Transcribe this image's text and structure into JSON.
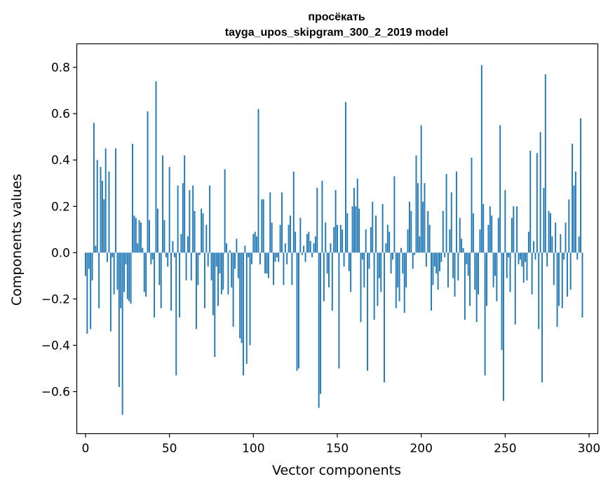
{
  "chart_data": {
    "type": "bar",
    "title": "просёкать",
    "subtitle": "tayga_upos_skipgram_300_2_2019 model",
    "xlabel": "Vector components",
    "ylabel": "Components values",
    "xlim": [
      -5,
      305
    ],
    "ylim": [
      -0.78,
      0.9
    ],
    "xticks": [
      0,
      50,
      100,
      150,
      200,
      250,
      300
    ],
    "xtick_labels": [
      "0",
      "50",
      "100",
      "150",
      "200",
      "250",
      "300"
    ],
    "yticks": [
      -0.6,
      -0.4,
      -0.2,
      0.0,
      0.2,
      0.4,
      0.6,
      0.8
    ],
    "ytick_labels": [
      "−0.6",
      "−0.4",
      "−0.2",
      "0.0",
      "0.2",
      "0.4",
      "0.6",
      "0.8"
    ],
    "bar_color": "#1f77b4",
    "values": [
      -0.1,
      -0.35,
      -0.07,
      -0.33,
      -0.12,
      0.56,
      0.03,
      0.4,
      -0.24,
      0.37,
      0.31,
      0.23,
      0.45,
      -0.04,
      0.35,
      -0.34,
      -0.02,
      -0.18,
      0.45,
      -0.16,
      -0.58,
      -0.24,
      -0.7,
      -0.17,
      -0.05,
      -0.2,
      -0.21,
      -0.22,
      0.47,
      0.16,
      0.15,
      0.04,
      0.14,
      0.13,
      0.02,
      -0.17,
      -0.19,
      0.61,
      0.14,
      -0.05,
      -0.03,
      -0.28,
      0.74,
      0.19,
      -0.14,
      -0.24,
      0.42,
      0.14,
      -0.02,
      -0.06,
      0.37,
      -0.25,
      0.05,
      -0.02,
      -0.53,
      0.29,
      -0.28,
      0.08,
      0.3,
      0.42,
      -0.12,
      0.07,
      0.27,
      -0.12,
      0.29,
      0.18,
      -0.33,
      -0.14,
      -0.01,
      0.19,
      0.17,
      -0.24,
      0.12,
      -0.06,
      0.29,
      -0.12,
      -0.27,
      -0.45,
      -0.06,
      -0.23,
      -0.09,
      -0.18,
      -0.16,
      0.36,
      0.04,
      -0.18,
      0.01,
      -0.15,
      -0.32,
      -0.07,
      0.06,
      -0.11,
      -0.37,
      -0.39,
      -0.53,
      0.03,
      -0.48,
      -0.02,
      -0.4,
      -0.05,
      0.08,
      0.09,
      0.07,
      0.62,
      -0.05,
      0.23,
      0.23,
      -0.09,
      -0.09,
      -0.11,
      0.26,
      0.13,
      -0.14,
      -0.04,
      -0.02,
      -0.04,
      0.12,
      0.26,
      -0.14,
      0.04,
      -0.05,
      0.12,
      0.16,
      -0.14,
      0.35,
      0.09,
      -0.51,
      -0.5,
      0.15,
      -0.01,
      0.03,
      -0.04,
      0.08,
      0.09,
      0.05,
      -0.02,
      0.04,
      0.07,
      0.28,
      -0.67,
      -0.61,
      0.31,
      -0.21,
      0.13,
      -0.09,
      -0.15,
      0.04,
      -0.25,
      0.11,
      0.27,
      0.12,
      -0.5,
      0.12,
      0.1,
      -0.06,
      0.65,
      0.17,
      -0.08,
      -0.17,
      0.2,
      0.28,
      0.2,
      0.32,
      0.19,
      -0.3,
      -0.03,
      -0.15,
      0.1,
      -0.51,
      -0.07,
      0.11,
      0.22,
      -0.29,
      0.16,
      -0.23,
      -0.11,
      -0.17,
      0.21,
      -0.56,
      0.04,
      0.12,
      0.09,
      -0.09,
      -0.03,
      0.33,
      -0.24,
      -0.15,
      -0.21,
      0.02,
      -0.09,
      -0.26,
      -0.15,
      0.1,
      0.22,
      0.18,
      -0.07,
      -0.01,
      0.42,
      0.3,
      0.07,
      0.55,
      0.22,
      0.3,
      -0.06,
      0.18,
      0.12,
      -0.25,
      -0.14,
      -0.06,
      -0.09,
      -0.16,
      -0.08,
      -0.04,
      0.18,
      -0.02,
      0.34,
      -0.15,
      0.1,
      0.26,
      -0.11,
      -0.19,
      0.35,
      -0.12,
      0.15,
      0.06,
      0.02,
      -0.29,
      -0.05,
      -0.1,
      -0.23,
      0.41,
      0.17,
      -0.16,
      -0.3,
      -0.18,
      0.1,
      0.81,
      0.21,
      -0.53,
      -0.23,
      0.12,
      0.2,
      0.16,
      -0.15,
      -0.1,
      -0.21,
      0.15,
      0.55,
      -0.42,
      -0.64,
      0.27,
      -0.11,
      -0.02,
      -0.17,
      0.15,
      0.2,
      -0.31,
      0.2,
      -0.05,
      -0.03,
      -0.06,
      -0.13,
      -0.04,
      -0.12,
      0.09,
      0.44,
      -0.18,
      0.05,
      -0.03,
      0.43,
      -0.33,
      0.52,
      -0.56,
      0.28,
      0.77,
      -0.06,
      0.18,
      0.17,
      0.07,
      -0.14,
      0.13,
      -0.32,
      -0.23,
      0.08,
      -0.24,
      -0.03,
      0.13,
      -0.19,
      0.23,
      -0.16,
      0.47,
      0.29,
      0.35,
      -0.03,
      0.07,
      0.58,
      -0.28
    ]
  }
}
